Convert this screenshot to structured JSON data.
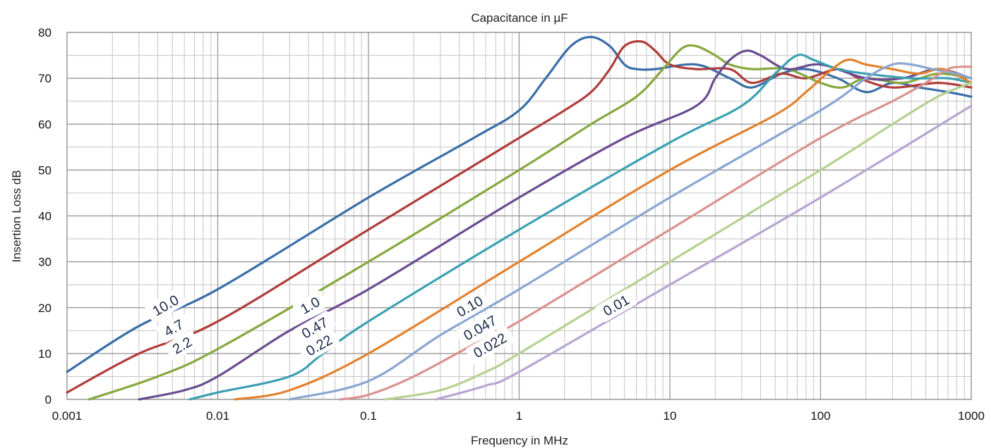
{
  "chart_data": {
    "type": "line",
    "title": "Capacitance in µF",
    "xlabel": "Frequency in MHz",
    "ylabel": "Insertion Loss dB",
    "x_scale": "log",
    "xlim": [
      0.001,
      1000
    ],
    "ylim": [
      0,
      80
    ],
    "x_ticks": [
      "0.001",
      "0.01",
      "0.1",
      "1",
      "10",
      "100",
      "1000"
    ],
    "y_ticks": [
      "0",
      "10",
      "20",
      "30",
      "40",
      "50",
      "60",
      "70",
      "80"
    ],
    "grid": true,
    "legend": "none",
    "series": [
      {
        "name": "10.0",
        "color": "#3a6ea8",
        "points": [
          [
            0.001,
            6
          ],
          [
            0.003,
            16
          ],
          [
            0.01,
            24
          ],
          [
            0.1,
            44
          ],
          [
            0.5,
            57
          ],
          [
            1,
            63
          ],
          [
            1.5,
            70
          ],
          [
            2.2,
            77
          ],
          [
            3,
            79
          ],
          [
            4,
            77
          ],
          [
            5,
            73
          ],
          [
            6,
            72
          ],
          [
            8,
            72
          ],
          [
            15,
            73
          ],
          [
            25,
            70
          ],
          [
            35,
            68
          ],
          [
            55,
            71
          ],
          [
            80,
            72
          ],
          [
            130,
            70
          ],
          [
            200,
            67
          ],
          [
            300,
            69
          ],
          [
            450,
            68
          ],
          [
            700,
            67
          ],
          [
            1000,
            66
          ]
        ]
      },
      {
        "name": "4.7",
        "color": "#b03c3a",
        "points": [
          [
            0.001,
            1.5
          ],
          [
            0.003,
            10
          ],
          [
            0.01,
            17
          ],
          [
            0.1,
            37
          ],
          [
            1,
            57
          ],
          [
            2,
            63
          ],
          [
            3,
            67
          ],
          [
            4,
            72
          ],
          [
            5,
            77
          ],
          [
            6.5,
            78
          ],
          [
            8,
            76
          ],
          [
            10,
            73
          ],
          [
            15,
            72
          ],
          [
            25,
            72
          ],
          [
            35,
            69
          ],
          [
            55,
            71
          ],
          [
            80,
            70
          ],
          [
            130,
            72
          ],
          [
            180,
            70
          ],
          [
            300,
            68
          ],
          [
            600,
            69
          ],
          [
            1000,
            68
          ]
        ]
      },
      {
        "name": "2.2",
        "color": "#86a83e",
        "points": [
          [
            0.0014,
            0
          ],
          [
            0.004,
            5
          ],
          [
            0.01,
            11
          ],
          [
            0.1,
            30
          ],
          [
            1,
            50
          ],
          [
            3,
            60
          ],
          [
            6,
            66
          ],
          [
            9,
            72
          ],
          [
            12,
            76.5
          ],
          [
            15,
            77
          ],
          [
            20,
            75
          ],
          [
            25,
            73
          ],
          [
            35,
            72
          ],
          [
            60,
            72
          ],
          [
            100,
            69
          ],
          [
            140,
            68
          ],
          [
            200,
            70
          ],
          [
            350,
            69
          ],
          [
            600,
            71
          ],
          [
            1000,
            70
          ]
        ]
      },
      {
        "name": "1.0",
        "color": "#6a4c90",
        "points": [
          [
            0.003,
            0
          ],
          [
            0.006,
            2
          ],
          [
            0.01,
            5
          ],
          [
            0.03,
            15
          ],
          [
            0.1,
            24
          ],
          [
            1,
            44
          ],
          [
            5,
            57
          ],
          [
            15,
            64
          ],
          [
            20,
            70
          ],
          [
            25,
            74
          ],
          [
            32,
            76
          ],
          [
            40,
            75
          ],
          [
            60,
            72
          ],
          [
            100,
            73
          ],
          [
            200,
            70
          ],
          [
            350,
            70
          ],
          [
            600,
            72
          ],
          [
            1000,
            70
          ]
        ]
      },
      {
        "name": "0.47",
        "color": "#3ba0b2",
        "points": [
          [
            0.0065,
            0
          ],
          [
            0.01,
            1.5
          ],
          [
            0.03,
            5
          ],
          [
            0.05,
            10
          ],
          [
            0.1,
            17
          ],
          [
            1,
            37
          ],
          [
            10,
            56
          ],
          [
            30,
            64
          ],
          [
            50,
            71
          ],
          [
            70,
            75
          ],
          [
            90,
            74
          ],
          [
            130,
            72
          ],
          [
            200,
            71
          ],
          [
            400,
            70
          ],
          [
            700,
            70
          ],
          [
            1000,
            69
          ]
        ]
      },
      {
        "name": "0.22",
        "color": "#e2822e",
        "points": [
          [
            0.013,
            0
          ],
          [
            0.03,
            2
          ],
          [
            0.1,
            10
          ],
          [
            1,
            30
          ],
          [
            10,
            50
          ],
          [
            50,
            62
          ],
          [
            80,
            67
          ],
          [
            110,
            71
          ],
          [
            150,
            74
          ],
          [
            200,
            73
          ],
          [
            300,
            72
          ],
          [
            450,
            71
          ],
          [
            650,
            72
          ],
          [
            1000,
            69
          ]
        ]
      },
      {
        "name": "0.10",
        "color": "#8aa6d2",
        "points": [
          [
            0.03,
            0
          ],
          [
            0.1,
            4
          ],
          [
            0.3,
            14
          ],
          [
            1,
            24
          ],
          [
            10,
            44
          ],
          [
            100,
            63
          ],
          [
            200,
            70
          ],
          [
            300,
            73
          ],
          [
            400,
            73
          ],
          [
            550,
            72
          ],
          [
            800,
            71
          ],
          [
            1000,
            70
          ]
        ]
      },
      {
        "name": "0.047",
        "color": "#d99290",
        "points": [
          [
            0.065,
            0
          ],
          [
            0.1,
            1
          ],
          [
            0.2,
            5
          ],
          [
            0.5,
            12
          ],
          [
            1,
            17
          ],
          [
            10,
            37
          ],
          [
            100,
            57
          ],
          [
            300,
            65
          ],
          [
            500,
            69
          ],
          [
            700,
            72
          ],
          [
            850,
            72.5
          ],
          [
            1000,
            72.5
          ]
        ]
      },
      {
        "name": "0.022",
        "color": "#b5d191",
        "points": [
          [
            0.13,
            0
          ],
          [
            0.3,
            2
          ],
          [
            0.6,
            6
          ],
          [
            1,
            10
          ],
          [
            10,
            30
          ],
          [
            100,
            50
          ],
          [
            300,
            60
          ],
          [
            600,
            66
          ],
          [
            1000,
            69
          ]
        ]
      },
      {
        "name": "0.01",
        "color": "#b9a4d3",
        "points": [
          [
            0.28,
            0
          ],
          [
            0.6,
            3
          ],
          [
            1,
            6
          ],
          [
            10,
            25
          ],
          [
            100,
            44
          ],
          [
            1000,
            64
          ]
        ]
      }
    ],
    "curve_labels": [
      {
        "text": "10.0",
        "x": 0.0045,
        "y": 20.5
      },
      {
        "text": "4.7",
        "x": 0.0051,
        "y": 15.6
      },
      {
        "text": "2.2",
        "x": 0.0058,
        "y": 11.8
      },
      {
        "text": "1.0",
        "x": 0.041,
        "y": 20.5
      },
      {
        "text": "0.47",
        "x": 0.044,
        "y": 15.6
      },
      {
        "text": "0.22",
        "x": 0.047,
        "y": 11.8
      },
      {
        "text": "0.10",
        "x": 0.47,
        "y": 20.3
      },
      {
        "text": "0.047",
        "x": 0.55,
        "y": 15.6
      },
      {
        "text": "0.022",
        "x": 0.64,
        "y": 11.8
      },
      {
        "text": "0.01",
        "x": 4.4,
        "y": 20.5
      }
    ]
  }
}
